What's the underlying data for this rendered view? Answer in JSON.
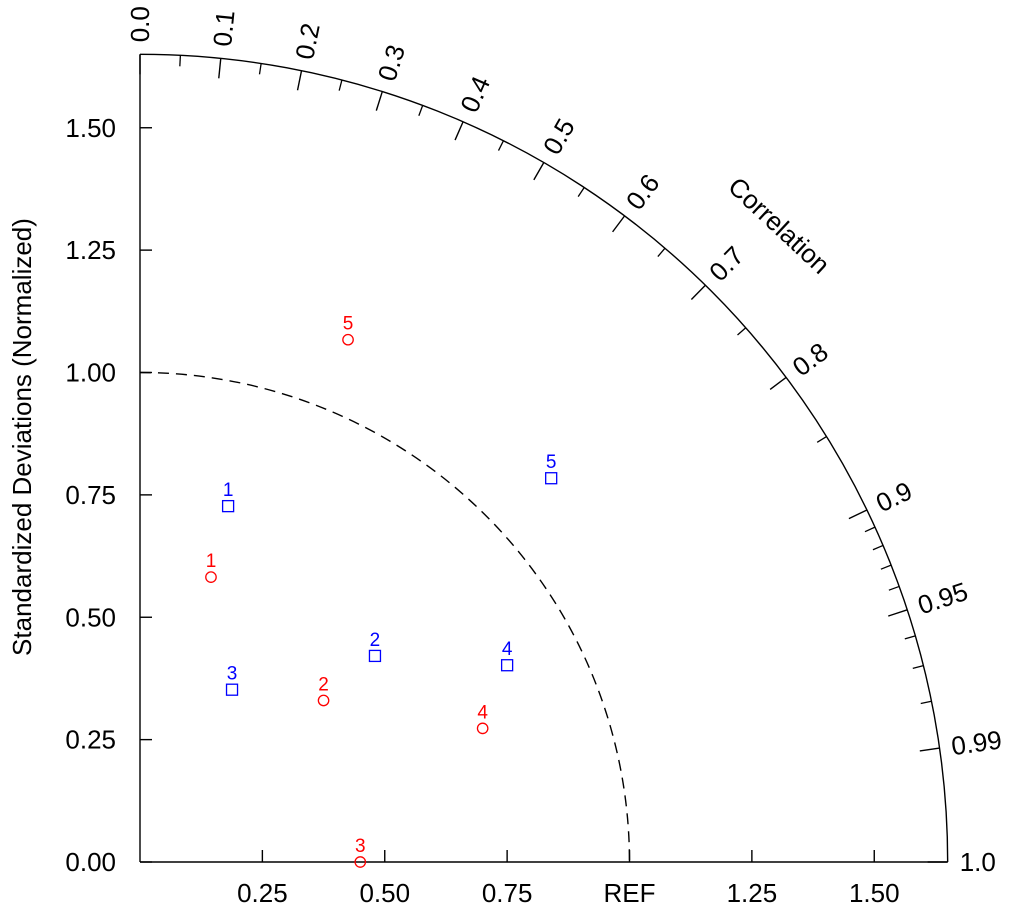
{
  "chart_data": {
    "type": "scatter",
    "subtype": "taylor-diagram",
    "ylabel": "Standardized Deviations (Normalized)",
    "angular_label": "Correlation",
    "radial_range": [
      0,
      1.65
    ],
    "reference_label": "REF",
    "reference_std": 1.0,
    "x_tick_labels": [
      "0.25",
      "0.50",
      "0.75",
      "REF",
      "1.25",
      "1.50"
    ],
    "x_tick_values": [
      0.25,
      0.5,
      0.75,
      1.0,
      1.25,
      1.5
    ],
    "y_tick_labels": [
      "0.00",
      "0.25",
      "0.50",
      "0.75",
      "1.00",
      "1.25",
      "1.50"
    ],
    "y_tick_values": [
      0,
      0.25,
      0.5,
      0.75,
      1.0,
      1.25,
      1.5
    ],
    "corr_tick_labels": [
      "0.0",
      "0.1",
      "0.2",
      "0.3",
      "0.4",
      "0.5",
      "0.6",
      "0.7",
      "0.8",
      "0.9",
      "0.95",
      "0.99",
      "1.0"
    ],
    "corr_tick_values": [
      0.0,
      0.1,
      0.2,
      0.3,
      0.4,
      0.5,
      0.6,
      0.7,
      0.8,
      0.9,
      0.95,
      0.99,
      1.0
    ],
    "corr_minor_ticks": [
      0.05,
      0.15,
      0.25,
      0.35,
      0.45,
      0.55,
      0.65,
      0.75,
      0.85,
      0.91,
      0.92,
      0.93,
      0.94,
      0.96,
      0.97,
      0.98
    ],
    "series": [
      {
        "marker": "circle",
        "color": "#ff0000",
        "points": [
          {
            "label": "1",
            "x": 0.145,
            "y": 0.582
          },
          {
            "label": "2",
            "x": 0.375,
            "y": 0.33
          },
          {
            "label": "3",
            "x": 0.45,
            "y": 0.0
          },
          {
            "label": "4",
            "x": 0.7,
            "y": 0.273
          },
          {
            "label": "5",
            "x": 0.425,
            "y": 1.067
          }
        ]
      },
      {
        "marker": "square",
        "color": "#0000ff",
        "points": [
          {
            "label": "1",
            "x": 0.18,
            "y": 0.727
          },
          {
            "label": "2",
            "x": 0.48,
            "y": 0.421
          },
          {
            "label": "3",
            "x": 0.188,
            "y": 0.352
          },
          {
            "label": "4",
            "x": 0.75,
            "y": 0.402
          },
          {
            "label": "5",
            "x": 0.84,
            "y": 0.784
          }
        ]
      }
    ]
  }
}
